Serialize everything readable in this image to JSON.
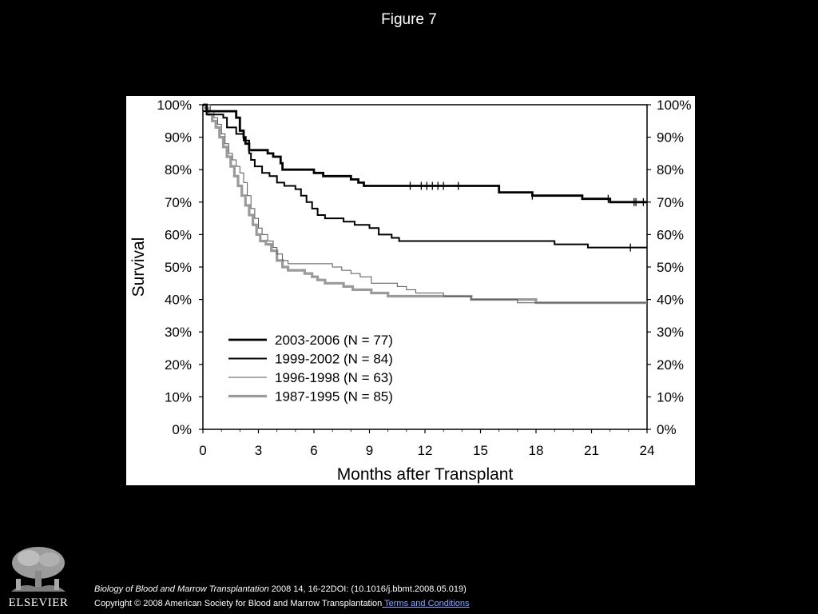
{
  "figure_title": "Figure 7",
  "chart_data": {
    "type": "line",
    "subtype": "kaplan-meier",
    "title": "",
    "xlabel": "Months after Transplant",
    "ylabel": "Survival",
    "xlim": [
      0,
      24
    ],
    "ylim": [
      0,
      100
    ],
    "x_ticks": [
      "0",
      "3",
      "6",
      "9",
      "12",
      "15",
      "18",
      "21",
      "24"
    ],
    "y_ticks": [
      "0%",
      "10%",
      "20%",
      "30%",
      "40%",
      "50%",
      "60%",
      "70%",
      "80%",
      "90%",
      "100%"
    ],
    "right_y_axis_ticks": true,
    "grid": false,
    "legend_position": "lower-left",
    "series": [
      {
        "name": "2003-2006 (N = 77)",
        "color": "#000000",
        "style": "thick",
        "points": [
          [
            0,
            100
          ],
          [
            0.2,
            98
          ],
          [
            1.8,
            96
          ],
          [
            2.0,
            92
          ],
          [
            2.2,
            90
          ],
          [
            2.3,
            88
          ],
          [
            2.5,
            86
          ],
          [
            3.0,
            86
          ],
          [
            3.5,
            85
          ],
          [
            3.8,
            84
          ],
          [
            4.2,
            82
          ],
          [
            4.3,
            80
          ],
          [
            5.7,
            80
          ],
          [
            6.0,
            79
          ],
          [
            6.5,
            78
          ],
          [
            8.0,
            77
          ],
          [
            8.4,
            76
          ],
          [
            8.7,
            75
          ],
          [
            9.0,
            75
          ],
          [
            15.5,
            75
          ],
          [
            16.0,
            73
          ],
          [
            17.5,
            73
          ],
          [
            17.8,
            72
          ],
          [
            20.0,
            72
          ],
          [
            20.5,
            71
          ],
          [
            21.5,
            71
          ],
          [
            22.0,
            70
          ],
          [
            24.0,
            70
          ]
        ],
        "censor_x": [
          11.2,
          11.8,
          12.1,
          12.4,
          12.7,
          13.0,
          13.8,
          17.8,
          21.9,
          23.3,
          23.4,
          23.8
        ]
      },
      {
        "name": "1999-2002 (N = 84)",
        "color": "#000000",
        "style": "medium",
        "points": [
          [
            0,
            98
          ],
          [
            0.2,
            97
          ],
          [
            1.1,
            96
          ],
          [
            1.3,
            93
          ],
          [
            1.8,
            91
          ],
          [
            2.2,
            89
          ],
          [
            2.5,
            85
          ],
          [
            2.6,
            83
          ],
          [
            2.8,
            81
          ],
          [
            3.2,
            79
          ],
          [
            3.6,
            78
          ],
          [
            4.0,
            76
          ],
          [
            4.4,
            75
          ],
          [
            5.0,
            74
          ],
          [
            5.3,
            72
          ],
          [
            5.6,
            70
          ],
          [
            5.9,
            68
          ],
          [
            6.2,
            66
          ],
          [
            6.6,
            65
          ],
          [
            7.6,
            64
          ],
          [
            8.2,
            63
          ],
          [
            9.0,
            62
          ],
          [
            9.5,
            60
          ],
          [
            10.2,
            59
          ],
          [
            10.6,
            58
          ],
          [
            18.8,
            58
          ],
          [
            19.0,
            57
          ],
          [
            20.5,
            57
          ],
          [
            20.8,
            56
          ],
          [
            24.0,
            56
          ]
        ],
        "censor_x": [
          23.1
        ]
      },
      {
        "name": "1996-1998 (N = 63)",
        "color": "#555555",
        "style": "thin",
        "points": [
          [
            0,
            100
          ],
          [
            0.4,
            98
          ],
          [
            0.6,
            96
          ],
          [
            0.8,
            94
          ],
          [
            1.0,
            91
          ],
          [
            1.2,
            88
          ],
          [
            1.4,
            85
          ],
          [
            1.6,
            83
          ],
          [
            1.8,
            81
          ],
          [
            2.0,
            79
          ],
          [
            2.2,
            76
          ],
          [
            2.4,
            72
          ],
          [
            2.6,
            68
          ],
          [
            2.8,
            65
          ],
          [
            3.0,
            62
          ],
          [
            3.2,
            60
          ],
          [
            3.5,
            58
          ],
          [
            3.8,
            56
          ],
          [
            4.0,
            54
          ],
          [
            4.3,
            52
          ],
          [
            4.6,
            51
          ],
          [
            7.0,
            50
          ],
          [
            7.5,
            49
          ],
          [
            8.0,
            48
          ],
          [
            8.5,
            47
          ],
          [
            9.1,
            45
          ],
          [
            10.5,
            44
          ],
          [
            11.0,
            43
          ],
          [
            11.5,
            42
          ],
          [
            13.0,
            41
          ],
          [
            14.0,
            41
          ],
          [
            14.5,
            40
          ],
          [
            16.5,
            40
          ],
          [
            17.0,
            39
          ],
          [
            24.0,
            39
          ]
        ],
        "censor_x": []
      },
      {
        "name": "1987-1995 (N = 85)",
        "color": "#9a9a9a",
        "style": "thick-gray",
        "points": [
          [
            0,
            99
          ],
          [
            0.3,
            97
          ],
          [
            0.5,
            95
          ],
          [
            0.7,
            93
          ],
          [
            0.9,
            90
          ],
          [
            1.1,
            87
          ],
          [
            1.3,
            84
          ],
          [
            1.5,
            81
          ],
          [
            1.7,
            78
          ],
          [
            1.9,
            75
          ],
          [
            2.1,
            72
          ],
          [
            2.3,
            69
          ],
          [
            2.5,
            66
          ],
          [
            2.7,
            63
          ],
          [
            2.9,
            60
          ],
          [
            3.1,
            58
          ],
          [
            3.4,
            57
          ],
          [
            3.7,
            55
          ],
          [
            4.0,
            52
          ],
          [
            4.3,
            50
          ],
          [
            4.6,
            49
          ],
          [
            5.5,
            48
          ],
          [
            5.9,
            47
          ],
          [
            6.2,
            46
          ],
          [
            6.6,
            45
          ],
          [
            7.6,
            44
          ],
          [
            8.1,
            43
          ],
          [
            9.1,
            42
          ],
          [
            10.0,
            41
          ],
          [
            14.0,
            41
          ],
          [
            14.5,
            40
          ],
          [
            16.5,
            40
          ],
          [
            18.0,
            39
          ],
          [
            24.0,
            39
          ]
        ],
        "censor_x": []
      }
    ]
  },
  "footer": {
    "journal": "Biology of Blood and Marrow Transplantation",
    "citation_rest": " 2008 14, 16-22DOI: (10.1016/j.bbmt.2008.05.019)",
    "copyright": "Copyright © 2008 American Society for Blood and Marrow Transplantation",
    "terms_link": " Terms and Conditions"
  },
  "logo_text": "ELSEVIER"
}
